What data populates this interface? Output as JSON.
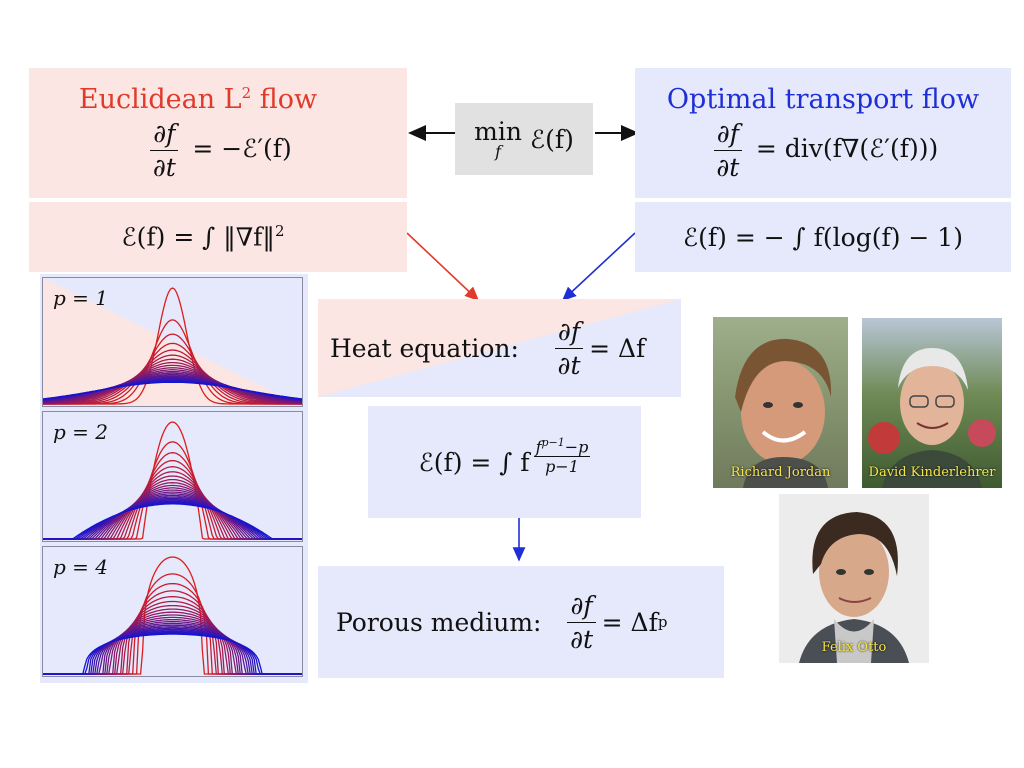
{
  "left_box": {
    "title": "Euclidean L",
    "title_sup": "2",
    "title_suffix": " flow",
    "eq_num": "∂f",
    "eq_den": "∂t",
    "eq_rhs": "= −ℰ′(f)",
    "energy": "ℰ(f) = ∫ ‖∇f‖",
    "energy_sup": "2"
  },
  "center_box": {
    "min_word": "min",
    "min_sub": "f",
    "min_expr": "ℰ(f)"
  },
  "right_box": {
    "title": "Optimal transport flow",
    "eq_num": "∂f",
    "eq_den": "∂t",
    "eq_rhs": "= div(f∇(ℰ′(f)))",
    "energy": "ℰ(f) = − ∫ f(log(f) − 1)"
  },
  "heat_box": {
    "label": "Heat equation:",
    "eq_num": "∂f",
    "eq_den": "∂t",
    "eq_rhs": "= Δf"
  },
  "energy_p_box": {
    "lhs": "ℰ(f) = ∫ f",
    "frac_num": "f",
    "frac_num_sup": "p−1",
    "frac_num_tail": "−p",
    "frac_den": "p−1"
  },
  "porous_box": {
    "label": "Porous medium:",
    "eq_num": "∂f",
    "eq_den": "∂t",
    "eq_rhs": "= Δf",
    "eq_sup": "p"
  },
  "plots": [
    {
      "label": "p = 1",
      "p": 1
    },
    {
      "label": "p = 2",
      "p": 2
    },
    {
      "label": "p = 4",
      "p": 4
    }
  ],
  "photos": [
    {
      "caption": "Richard Jordan"
    },
    {
      "caption": "David Kinderlehrer"
    },
    {
      "caption": "Felix Otto"
    }
  ],
  "colors": {
    "pink_bg": "#fbe6e3",
    "blue_bg": "#e6e8fb",
    "red": "#e03a2a",
    "blue": "#1f2fd6"
  }
}
